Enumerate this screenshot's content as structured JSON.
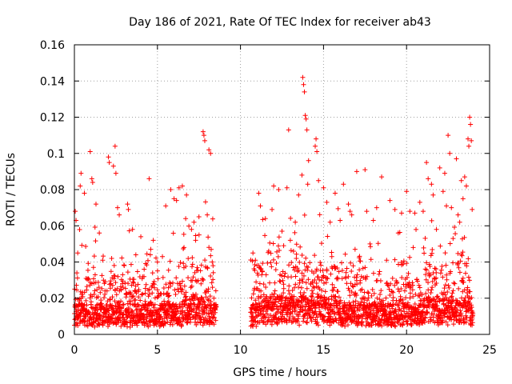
{
  "chart_data": {
    "type": "scatter",
    "title": "Day 186 of 2021, Rate Of TEC Index for receiver ab43",
    "xlabel": "GPS time / hours",
    "ylabel": "ROTI / TECUs",
    "xlim": [
      0,
      25
    ],
    "ylim": [
      0,
      0.16
    ],
    "xticks": [
      "0",
      "5",
      "10",
      "15",
      "20",
      "25"
    ],
    "yticks": [
      "0",
      "0.02",
      "0.04",
      "0.06",
      "0.08",
      "0.1",
      "0.12",
      "0.14",
      "0.16"
    ],
    "grid": true,
    "marker": "+",
    "color": "#ff0000",
    "series": [
      {
        "x": [
          0.05,
          0.1,
          0.35,
          0.4,
          0.6,
          0.95,
          1.05,
          1.1,
          1.3,
          1.5,
          2.05,
          2.1,
          2.35,
          2.45,
          2.5,
          2.6,
          2.7,
          3.2,
          3.25,
          3.5,
          4.0,
          4.5,
          4.6,
          4.75,
          5.5,
          5.8,
          6.0,
          6.15,
          6.3,
          6.5,
          6.7,
          6.75,
          7.05,
          7.2,
          7.5,
          7.75,
          7.8,
          7.85,
          8.0,
          8.1,
          8.2,
          0.15,
          0.2,
          1.7,
          2.2,
          3.0,
          3.7,
          4.2,
          5.0,
          5.3,
          6.6,
          7.3,
          8.3,
          10.75,
          10.9,
          11.1,
          11.2,
          11.5,
          11.9,
          12.0,
          12.3,
          12.5,
          12.8,
          12.9,
          13.3,
          13.5,
          13.7,
          13.75,
          13.8,
          13.85,
          13.9,
          13.95,
          14.0,
          14.05,
          14.1,
          14.5,
          14.55,
          14.6,
          14.7,
          15.0,
          15.2,
          15.4,
          15.7,
          16.0,
          16.2,
          16.5,
          16.6,
          16.7,
          17.0,
          17.5,
          17.6,
          18.0,
          18.2,
          18.5,
          19.0,
          19.3,
          19.7,
          20.0,
          20.2,
          20.5,
          20.8,
          21.0,
          21.2,
          21.3,
          21.5,
          21.6,
          22.0,
          22.2,
          22.3,
          22.4,
          22.5,
          22.6,
          22.7,
          23.0,
          23.1,
          23.3,
          23.4,
          23.5,
          23.6,
          23.7,
          23.75,
          23.8,
          23.85,
          23.9,
          23.95,
          11.0,
          11.7,
          12.6,
          13.0,
          15.5,
          16.9,
          17.8,
          18.8,
          19.5,
          20.4,
          21.8,
          22.8,
          23.2
        ],
        "y": [
          0.068,
          0.063,
          0.082,
          0.089,
          0.078,
          0.101,
          0.086,
          0.084,
          0.072,
          0.056,
          0.098,
          0.095,
          0.093,
          0.104,
          0.089,
          0.07,
          0.066,
          0.072,
          0.069,
          0.058,
          0.054,
          0.086,
          0.047,
          0.052,
          0.071,
          0.08,
          0.075,
          0.074,
          0.081,
          0.082,
          0.064,
          0.077,
          0.058,
          0.062,
          0.065,
          0.112,
          0.11,
          0.107,
          0.066,
          0.102,
          0.1,
          0.034,
          0.045,
          0.041,
          0.028,
          0.038,
          0.044,
          0.036,
          0.04,
          0.043,
          0.048,
          0.052,
          0.04,
          0.045,
          0.041,
          0.078,
          0.071,
          0.064,
          0.069,
          0.082,
          0.08,
          0.057,
          0.081,
          0.113,
          0.062,
          0.077,
          0.088,
          0.142,
          0.138,
          0.134,
          0.121,
          0.119,
          0.113,
          0.083,
          0.096,
          0.104,
          0.108,
          0.101,
          0.085,
          0.081,
          0.073,
          0.062,
          0.078,
          0.063,
          0.083,
          0.072,
          0.068,
          0.066,
          0.09,
          0.091,
          0.068,
          0.063,
          0.07,
          0.087,
          0.074,
          0.069,
          0.067,
          0.079,
          0.068,
          0.067,
          0.073,
          0.068,
          0.095,
          0.086,
          0.083,
          0.077,
          0.092,
          0.079,
          0.089,
          0.071,
          0.11,
          0.1,
          0.07,
          0.097,
          0.066,
          0.085,
          0.075,
          0.087,
          0.082,
          0.108,
          0.104,
          0.12,
          0.116,
          0.107,
          0.069,
          0.038,
          0.046,
          0.049,
          0.052,
          0.043,
          0.047,
          0.05,
          0.041,
          0.056,
          0.048,
          0.058,
          0.053,
          0.062
        ]
      }
    ]
  }
}
